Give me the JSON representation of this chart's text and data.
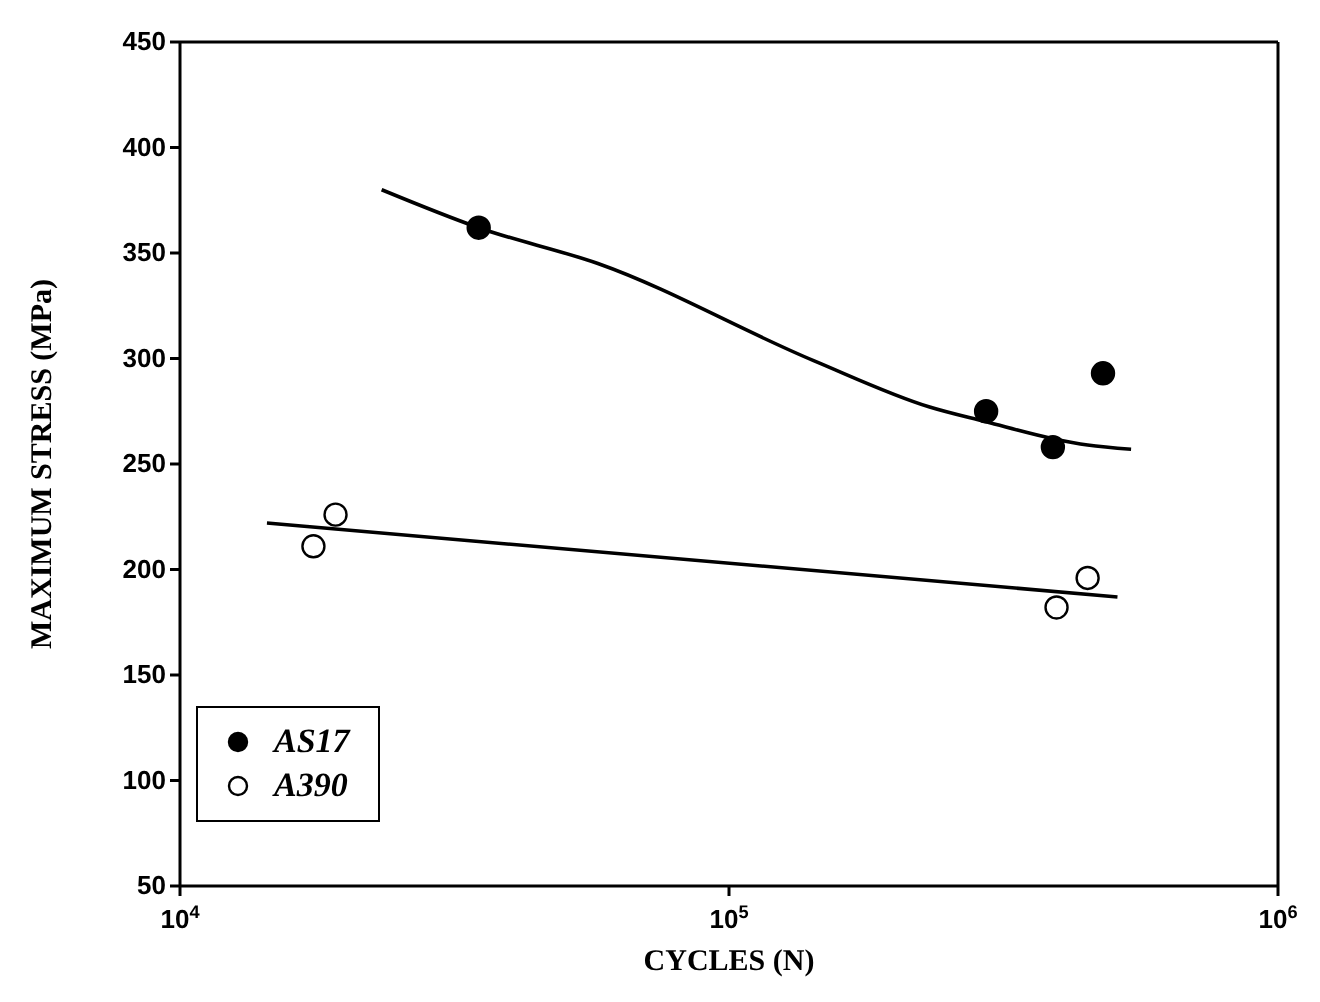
{
  "chart_data": {
    "type": "scatter",
    "xlabel": "CYCLES (N)",
    "ylabel": "MAXIMUM STRESS (MPa)",
    "log": "x",
    "xlim": [
      10000,
      1000000
    ],
    "xticks": [
      {
        "value": 10000,
        "label": "10$^{4}$"
      },
      {
        "value": 100000,
        "label": "10$^{5}$"
      },
      {
        "value": 1000000,
        "label": "10$^{6}$"
      }
    ],
    "ylim": [
      50,
      450
    ],
    "yticks": [
      50,
      100,
      150,
      200,
      250,
      300,
      350,
      400,
      450
    ],
    "grid": false,
    "legend": "bottom left",
    "series": [
      {
        "name": "AS17",
        "color": "#000000",
        "marker": "circle",
        "x": [
          35000,
          294000,
          389000,
          480000
        ],
        "values": [
          362,
          275,
          258,
          293
        ]
      },
      {
        "name": "A390",
        "color": "#ffffff",
        "marker": "circle",
        "x": [
          17500,
          19200,
          395000,
          450000
        ],
        "values": [
          211,
          226,
          182,
          196
        ]
      },
      {
        "type": "line",
        "color": "#000000",
        "marker": "none",
        "x": [
          23300,
          35000,
          57700,
          142600,
          232000,
          294000,
          389000,
          450000,
          540000
        ],
        "values": [
          380,
          362,
          345,
          299,
          277,
          270,
          262,
          259,
          257
        ]
      },
      {
        "type": "line",
        "color": "#000000",
        "marker": "none",
        "x": [
          14400,
          510000
        ],
        "values": [
          222,
          187
        ]
      }
    ]
  }
}
